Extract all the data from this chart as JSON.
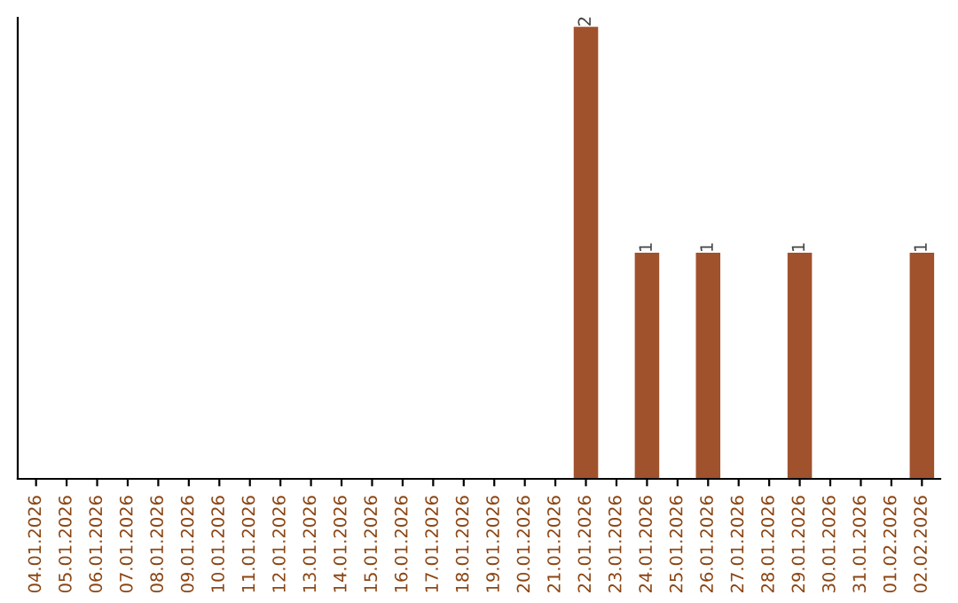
{
  "chart_data": {
    "type": "bar",
    "categories": [
      "04.01.2026",
      "05.01.2026",
      "06.01.2026",
      "07.01.2026",
      "08.01.2026",
      "09.01.2026",
      "10.01.2026",
      "11.01.2026",
      "12.01.2026",
      "13.01.2026",
      "14.01.2026",
      "15.01.2026",
      "16.01.2026",
      "17.01.2026",
      "18.01.2026",
      "19.01.2026",
      "20.01.2026",
      "21.01.2026",
      "22.01.2026",
      "23.01.2026",
      "24.01.2026",
      "25.01.2026",
      "26.01.2026",
      "27.01.2026",
      "28.01.2026",
      "29.01.2026",
      "30.01.2026",
      "31.01.2026",
      "01.02.2026",
      "02.02.2026"
    ],
    "values": [
      null,
      null,
      null,
      null,
      null,
      null,
      null,
      null,
      null,
      null,
      null,
      null,
      null,
      null,
      null,
      null,
      null,
      null,
      2,
      null,
      1,
      null,
      1,
      null,
      null,
      1,
      null,
      null,
      null,
      1
    ],
    "data_labels": true,
    "color": "#a0522d",
    "grid": false,
    "legend": false
  }
}
